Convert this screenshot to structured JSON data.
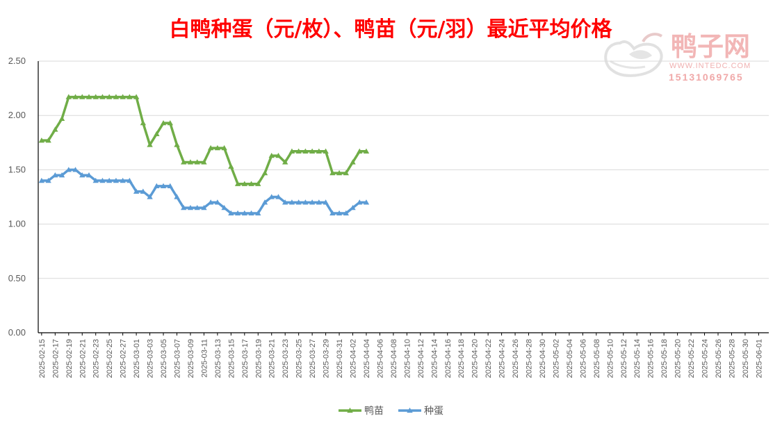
{
  "chart_data": {
    "type": "line",
    "title": "白鸭种蛋（元/枚）、鸭苗（元/羽）最近平均价格",
    "x_start": "2025-02-15",
    "x_end": "2025-06-02",
    "x_tick_labels": [
      "2025-02-15",
      "2025-02-17",
      "2025-02-19",
      "2025-02-21",
      "2025-02-23",
      "2025-02-25",
      "2025-02-27",
      "2025-03-01",
      "2025-03-03",
      "2025-03-05",
      "2025-03-07",
      "2025-03-09",
      "2025-03-11",
      "2025-03-13",
      "2025-03-15",
      "2025-03-17",
      "2025-03-19",
      "2025-03-21",
      "2025-03-23",
      "2025-03-25",
      "2025-03-27",
      "2025-03-29",
      "2025-03-31",
      "2025-04-02",
      "2025-04-04",
      "2025-04-06",
      "2025-04-08",
      "2025-04-10",
      "2025-04-12",
      "2025-04-14",
      "2025-04-16",
      "2025-04-18",
      "2025-04-20",
      "2025-04-22",
      "2025-04-24",
      "2025-04-26",
      "2025-04-28",
      "2025-04-30",
      "2025-05-02",
      "2025-05-04",
      "2025-05-06",
      "2025-05-08",
      "2025-05-10",
      "2025-05-12",
      "2025-05-14",
      "2025-05-16",
      "2025-05-18",
      "2025-05-20",
      "2025-05-22",
      "2025-05-24",
      "2025-05-26",
      "2025-05-28",
      "2025-05-30",
      "2025-06-01"
    ],
    "ylim": [
      0,
      2.5
    ],
    "y_ticks": [
      "0.00",
      "0.50",
      "1.00",
      "1.50",
      "2.00",
      "2.50"
    ],
    "grid": true,
    "legend_position": "bottom",
    "series": [
      {
        "name": "鸭苗",
        "color": "#70ad47",
        "points": [
          [
            "2025-02-15",
            1.77
          ],
          [
            "2025-02-16",
            1.77
          ],
          [
            "2025-02-17",
            1.87
          ],
          [
            "2025-02-18",
            1.97
          ],
          [
            "2025-02-19",
            2.17
          ],
          [
            "2025-02-20",
            2.17
          ],
          [
            "2025-02-21",
            2.17
          ],
          [
            "2025-02-22",
            2.17
          ],
          [
            "2025-02-23",
            2.17
          ],
          [
            "2025-02-24",
            2.17
          ],
          [
            "2025-02-25",
            2.17
          ],
          [
            "2025-02-26",
            2.17
          ],
          [
            "2025-02-27",
            2.17
          ],
          [
            "2025-02-28",
            2.17
          ],
          [
            "2025-03-01",
            2.17
          ],
          [
            "2025-03-02",
            1.93
          ],
          [
            "2025-03-03",
            1.73
          ],
          [
            "2025-03-04",
            1.83
          ],
          [
            "2025-03-05",
            1.93
          ],
          [
            "2025-03-06",
            1.93
          ],
          [
            "2025-03-07",
            1.73
          ],
          [
            "2025-03-08",
            1.57
          ],
          [
            "2025-03-09",
            1.57
          ],
          [
            "2025-03-10",
            1.57
          ],
          [
            "2025-03-11",
            1.57
          ],
          [
            "2025-03-12",
            1.7
          ],
          [
            "2025-03-13",
            1.7
          ],
          [
            "2025-03-14",
            1.7
          ],
          [
            "2025-03-15",
            1.53
          ],
          [
            "2025-03-16",
            1.37
          ],
          [
            "2025-03-17",
            1.37
          ],
          [
            "2025-03-18",
            1.37
          ],
          [
            "2025-03-19",
            1.37
          ],
          [
            "2025-03-20",
            1.47
          ],
          [
            "2025-03-21",
            1.63
          ],
          [
            "2025-03-22",
            1.63
          ],
          [
            "2025-03-23",
            1.57
          ],
          [
            "2025-03-24",
            1.67
          ],
          [
            "2025-03-25",
            1.67
          ],
          [
            "2025-03-26",
            1.67
          ],
          [
            "2025-03-27",
            1.67
          ],
          [
            "2025-03-28",
            1.67
          ],
          [
            "2025-03-29",
            1.67
          ],
          [
            "2025-03-30",
            1.47
          ],
          [
            "2025-03-31",
            1.47
          ],
          [
            "2025-04-01",
            1.47
          ],
          [
            "2025-04-02",
            1.57
          ],
          [
            "2025-04-03",
            1.67
          ],
          [
            "2025-04-04",
            1.67
          ]
        ]
      },
      {
        "name": "种蛋",
        "color": "#5b9bd5",
        "points": [
          [
            "2025-02-15",
            1.4
          ],
          [
            "2025-02-16",
            1.4
          ],
          [
            "2025-02-17",
            1.45
          ],
          [
            "2025-02-18",
            1.45
          ],
          [
            "2025-02-19",
            1.5
          ],
          [
            "2025-02-20",
            1.5
          ],
          [
            "2025-02-21",
            1.45
          ],
          [
            "2025-02-22",
            1.45
          ],
          [
            "2025-02-23",
            1.4
          ],
          [
            "2025-02-24",
            1.4
          ],
          [
            "2025-02-25",
            1.4
          ],
          [
            "2025-02-26",
            1.4
          ],
          [
            "2025-02-27",
            1.4
          ],
          [
            "2025-02-28",
            1.4
          ],
          [
            "2025-03-01",
            1.3
          ],
          [
            "2025-03-02",
            1.3
          ],
          [
            "2025-03-03",
            1.25
          ],
          [
            "2025-03-04",
            1.35
          ],
          [
            "2025-03-05",
            1.35
          ],
          [
            "2025-03-06",
            1.35
          ],
          [
            "2025-03-07",
            1.25
          ],
          [
            "2025-03-08",
            1.15
          ],
          [
            "2025-03-09",
            1.15
          ],
          [
            "2025-03-10",
            1.15
          ],
          [
            "2025-03-11",
            1.15
          ],
          [
            "2025-03-12",
            1.2
          ],
          [
            "2025-03-13",
            1.2
          ],
          [
            "2025-03-14",
            1.15
          ],
          [
            "2025-03-15",
            1.1
          ],
          [
            "2025-03-16",
            1.1
          ],
          [
            "2025-03-17",
            1.1
          ],
          [
            "2025-03-18",
            1.1
          ],
          [
            "2025-03-19",
            1.1
          ],
          [
            "2025-03-20",
            1.2
          ],
          [
            "2025-03-21",
            1.25
          ],
          [
            "2025-03-22",
            1.25
          ],
          [
            "2025-03-23",
            1.2
          ],
          [
            "2025-03-24",
            1.2
          ],
          [
            "2025-03-25",
            1.2
          ],
          [
            "2025-03-26",
            1.2
          ],
          [
            "2025-03-27",
            1.2
          ],
          [
            "2025-03-28",
            1.2
          ],
          [
            "2025-03-29",
            1.2
          ],
          [
            "2025-03-30",
            1.1
          ],
          [
            "2025-03-31",
            1.1
          ],
          [
            "2025-04-01",
            1.1
          ],
          [
            "2025-04-02",
            1.15
          ],
          [
            "2025-04-03",
            1.2
          ],
          [
            "2025-04-04",
            1.2
          ]
        ]
      }
    ]
  },
  "watermark": {
    "brand_cn": "鸭子网",
    "site": "WWW.INTEDC.COM",
    "phone": "15131069765",
    "color": "#f2b6b6"
  }
}
